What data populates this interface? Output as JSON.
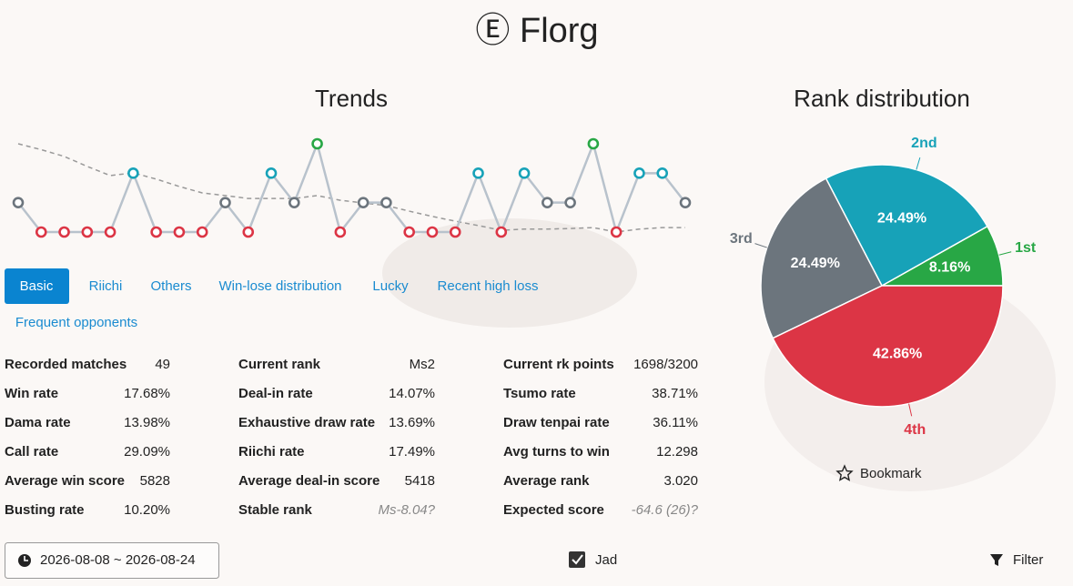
{
  "header": {
    "title": "Ⓔ Florg"
  },
  "chart_data": [
    {
      "type": "line",
      "title": "Trends",
      "series": [
        {
          "color": "#b8c2cc",
          "values": [
            3,
            4,
            4,
            4,
            4,
            2,
            4,
            4,
            4,
            3,
            4,
            2,
            3,
            1,
            4,
            3,
            3,
            4,
            4,
            4,
            2,
            4,
            2,
            3,
            3,
            1,
            4,
            2,
            2,
            3
          ]
        },
        {
          "color": "#999999",
          "dashed": true,
          "values": [
            1.0,
            1.2,
            1.43,
            1.77,
            2.08,
            1.99,
            2.2,
            2.45,
            2.67,
            2.76,
            2.86,
            2.86,
            2.86,
            2.76,
            2.92,
            3.01,
            3.1,
            3.29,
            3.47,
            3.63,
            3.78,
            3.94,
            3.9,
            3.9,
            3.88,
            3.85,
            4.0,
            3.9,
            3.85,
            3.85
          ]
        }
      ],
      "point_colors": [
        "#28a745",
        "#17a2b8",
        "#6c757d",
        "#dc3545"
      ],
      "ylim": [
        4,
        1
      ]
    },
    {
      "type": "pie",
      "title": "Rank distribution",
      "categories": [
        "1st",
        "2nd",
        "3rd",
        "4th"
      ],
      "values": [
        8.16,
        24.49,
        24.49,
        42.86
      ],
      "value_labels": [
        "8.16%",
        "24.49%",
        "24.49%",
        "42.86%"
      ],
      "colors": [
        "#28a745",
        "#17a2b8",
        "#6c757d",
        "#dc3545"
      ]
    }
  ],
  "tabs": [
    "Basic",
    "Riichi",
    "Others",
    "Win-lose distribution",
    "Lucky",
    "Recent high loss",
    "Frequent opponents"
  ],
  "stats": [
    [
      [
        "Recorded matches",
        "49"
      ],
      [
        "Win rate",
        "17.68%"
      ],
      [
        "Dama rate",
        "13.98%"
      ],
      [
        "Call rate",
        "29.09%"
      ],
      [
        "Average win score",
        "5828"
      ],
      [
        "Busting rate",
        "10.20%"
      ]
    ],
    [
      [
        "Current rank",
        "Ms2"
      ],
      [
        "Deal-in rate",
        "14.07%"
      ],
      [
        "Exhaustive draw rate",
        "13.69%"
      ],
      [
        "Riichi rate",
        "17.49%"
      ],
      [
        "Average deal-in score",
        "5418"
      ],
      [
        "Stable rank",
        "Ms-8.04?"
      ]
    ],
    [
      [
        "Current rk points",
        "1698/3200"
      ],
      [
        "Tsumo rate",
        "38.71%"
      ],
      [
        "Draw tenpai rate",
        "36.11%"
      ],
      [
        "Avg turns to win",
        "12.298"
      ],
      [
        "Average rank",
        "3.020"
      ],
      [
        "Expected score",
        "-64.6 (26)?"
      ]
    ]
  ],
  "footer": {
    "date_range": "2026-08-08 ~ 2026-08-24",
    "checkbox": "Jad",
    "filter": "Filter",
    "bookmark": "Bookmark"
  }
}
